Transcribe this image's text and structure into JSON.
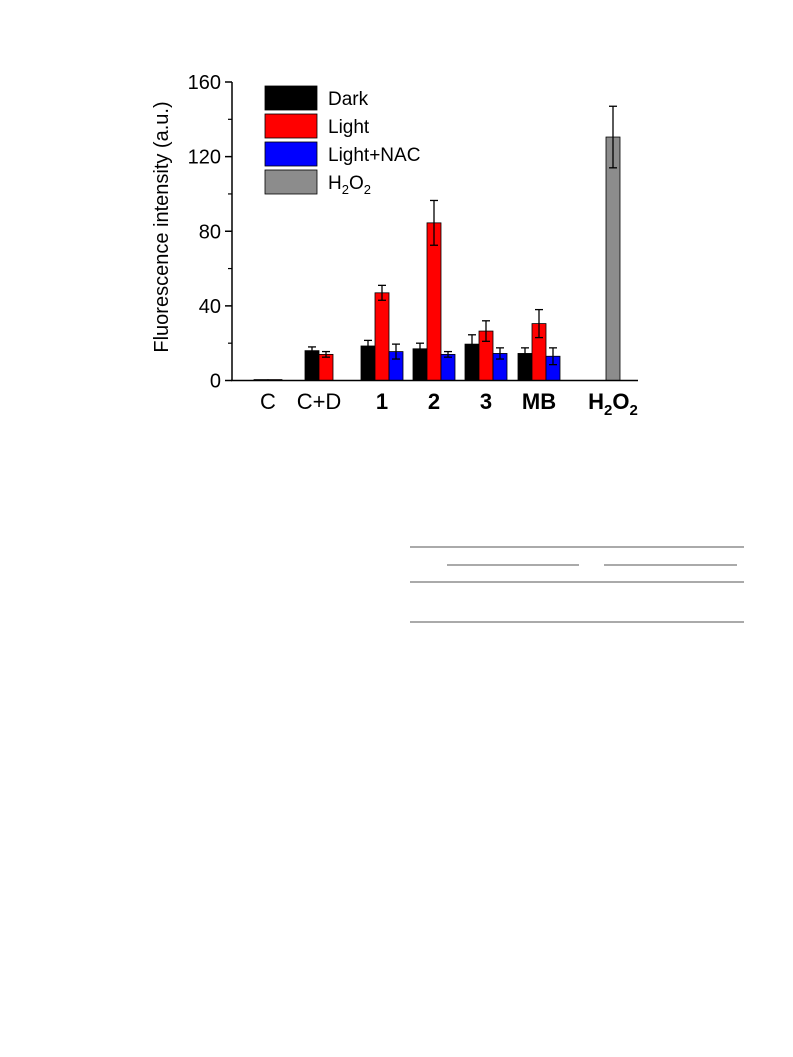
{
  "chart_data": {
    "type": "bar",
    "ylabel": "Fluorescence intensity (a.u.)",
    "xlabel": "",
    "ylim": [
      0,
      160
    ],
    "yticks": [
      0,
      40,
      80,
      120,
      160
    ],
    "categories": [
      {
        "label": "C",
        "bold": false
      },
      {
        "label": "C+D",
        "bold": false
      },
      {
        "label": "1",
        "bold": true
      },
      {
        "label": "2",
        "bold": true
      },
      {
        "label": "3",
        "bold": true
      },
      {
        "label": "MB",
        "bold": true
      },
      {
        "label": "H2O2",
        "main": "H",
        "sub1": "2",
        "mid": "O",
        "sub2": "2",
        "bold": true
      }
    ],
    "series": [
      {
        "name": "Dark",
        "color": "#000000",
        "values": [
          0.5,
          16,
          18.5,
          17,
          19.5,
          14.5,
          null
        ],
        "errors": [
          0,
          2,
          3,
          3,
          5,
          3,
          null
        ]
      },
      {
        "name": "Light",
        "color": "#ff0000",
        "values": [
          0.5,
          14,
          47,
          84.5,
          26.5,
          30.5,
          null
        ],
        "errors": [
          0,
          1.5,
          4,
          12,
          5.5,
          7.5,
          null
        ]
      },
      {
        "name": "Light+NAC",
        "color": "#0000ff",
        "values": [
          null,
          null,
          15.5,
          14,
          14.5,
          13,
          null
        ],
        "errors": [
          null,
          null,
          4,
          1.5,
          3,
          4.5,
          null
        ]
      },
      {
        "name": "H2O2",
        "legend_main": "H",
        "legend_sub1": "2",
        "legend_mid": "O",
        "legend_sub2": "2",
        "color": "#8c8c8c",
        "values": [
          null,
          null,
          null,
          null,
          null,
          null,
          130.5
        ],
        "errors": [
          null,
          null,
          null,
          null,
          null,
          null,
          16.5
        ]
      }
    ],
    "legend_position": "top-left",
    "grid": false
  }
}
